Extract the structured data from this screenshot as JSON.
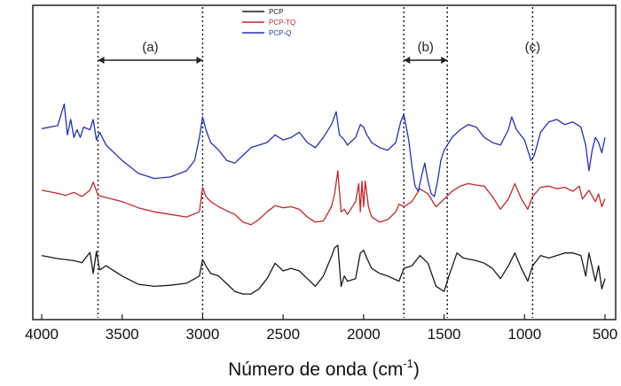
{
  "chart_data": {
    "type": "line",
    "title": "",
    "xlabel": "Número de onda (cm",
    "xlabel_sup": "-1",
    "xlabel_close": ")",
    "ylabel": "",
    "xlim": [
      4000,
      500
    ],
    "x_inverted": true,
    "x_ticks": [
      "4000",
      "3500",
      "3000",
      "2500",
      "2000",
      "1500",
      "1000",
      "500"
    ],
    "y_ticks": [],
    "grid": false,
    "legend_position": "top-center",
    "series": [
      {
        "name": "PCP",
        "color": "#1a1a1a",
        "offset": 0,
        "points": [
          [
            4000,
            0.8
          ],
          [
            3900,
            0.74
          ],
          [
            3800,
            0.7
          ],
          [
            3750,
            0.66
          ],
          [
            3700,
            0.86
          ],
          [
            3680,
            0.45
          ],
          [
            3660,
            0.88
          ],
          [
            3640,
            0.52
          ],
          [
            3600,
            0.6
          ],
          [
            3500,
            0.4
          ],
          [
            3400,
            0.24
          ],
          [
            3300,
            0.2
          ],
          [
            3200,
            0.22
          ],
          [
            3100,
            0.26
          ],
          [
            3020,
            0.4
          ],
          [
            3000,
            0.72
          ],
          [
            2980,
            0.6
          ],
          [
            2950,
            0.45
          ],
          [
            2900,
            0.4
          ],
          [
            2850,
            0.25
          ],
          [
            2800,
            0.1
          ],
          [
            2750,
            0.05
          ],
          [
            2700,
            0.05
          ],
          [
            2650,
            0.15
          ],
          [
            2600,
            0.35
          ],
          [
            2550,
            0.65
          ],
          [
            2500,
            0.5
          ],
          [
            2450,
            0.55
          ],
          [
            2400,
            0.5
          ],
          [
            2350,
            0.35
          ],
          [
            2300,
            0.2
          ],
          [
            2250,
            0.4
          ],
          [
            2200,
            0.78
          ],
          [
            2180,
            0.95
          ],
          [
            2160,
            1.0
          ],
          [
            2140,
            0.2
          ],
          [
            2120,
            0.4
          ],
          [
            2100,
            0.3
          ],
          [
            2050,
            0.35
          ],
          [
            2020,
            0.85
          ],
          [
            2000,
            0.9
          ],
          [
            1980,
            0.75
          ],
          [
            1950,
            0.55
          ],
          [
            1900,
            0.45
          ],
          [
            1850,
            0.4
          ],
          [
            1780,
            0.3
          ],
          [
            1750,
            0.55
          ],
          [
            1700,
            0.6
          ],
          [
            1650,
            0.8
          ],
          [
            1600,
            0.65
          ],
          [
            1550,
            0.2
          ],
          [
            1500,
            0.1
          ],
          [
            1470,
            0.4
          ],
          [
            1420,
            0.85
          ],
          [
            1380,
            0.75
          ],
          [
            1300,
            0.7
          ],
          [
            1250,
            0.65
          ],
          [
            1200,
            0.55
          ],
          [
            1150,
            0.35
          ],
          [
            1100,
            0.6
          ],
          [
            1060,
            0.85
          ],
          [
            1020,
            0.55
          ],
          [
            980,
            0.3
          ],
          [
            950,
            0.6
          ],
          [
            900,
            0.8
          ],
          [
            850,
            0.75
          ],
          [
            800,
            0.8
          ],
          [
            750,
            0.85
          ],
          [
            700,
            0.85
          ],
          [
            650,
            0.8
          ],
          [
            620,
            0.4
          ],
          [
            600,
            0.85
          ],
          [
            560,
            0.3
          ],
          [
            540,
            0.6
          ],
          [
            520,
            0.15
          ],
          [
            500,
            0.35
          ]
        ]
      },
      {
        "name": "PCP-TQ",
        "color": "#c0282d",
        "offset": 1.35,
        "points": [
          [
            4000,
            0.72
          ],
          [
            3900,
            0.66
          ],
          [
            3850,
            0.62
          ],
          [
            3800,
            0.68
          ],
          [
            3750,
            0.6
          ],
          [
            3700,
            0.72
          ],
          [
            3680,
            0.88
          ],
          [
            3650,
            0.62
          ],
          [
            3600,
            0.58
          ],
          [
            3500,
            0.5
          ],
          [
            3400,
            0.38
          ],
          [
            3300,
            0.3
          ],
          [
            3200,
            0.25
          ],
          [
            3100,
            0.2
          ],
          [
            3020,
            0.3
          ],
          [
            3000,
            0.78
          ],
          [
            2980,
            0.6
          ],
          [
            2950,
            0.5
          ],
          [
            2900,
            0.4
          ],
          [
            2850,
            0.32
          ],
          [
            2800,
            0.25
          ],
          [
            2750,
            0.1
          ],
          [
            2700,
            0.05
          ],
          [
            2650,
            0.15
          ],
          [
            2600,
            0.3
          ],
          [
            2550,
            0.42
          ],
          [
            2500,
            0.38
          ],
          [
            2450,
            0.4
          ],
          [
            2400,
            0.35
          ],
          [
            2350,
            0.2
          ],
          [
            2300,
            0.1
          ],
          [
            2250,
            0.12
          ],
          [
            2200,
            0.4
          ],
          [
            2180,
            0.65
          ],
          [
            2160,
            1.1
          ],
          [
            2140,
            0.3
          ],
          [
            2120,
            0.35
          ],
          [
            2100,
            0.25
          ],
          [
            2050,
            0.5
          ],
          [
            2030,
            0.85
          ],
          [
            2020,
            0.3
          ],
          [
            2010,
            0.9
          ],
          [
            2000,
            0.4
          ],
          [
            1990,
            0.9
          ],
          [
            1970,
            0.4
          ],
          [
            1950,
            0.2
          ],
          [
            1900,
            0.1
          ],
          [
            1850,
            0.15
          ],
          [
            1800,
            0.3
          ],
          [
            1780,
            0.45
          ],
          [
            1750,
            0.4
          ],
          [
            1700,
            0.5
          ],
          [
            1650,
            0.75
          ],
          [
            1600,
            0.65
          ],
          [
            1550,
            0.4
          ],
          [
            1500,
            0.55
          ],
          [
            1450,
            0.7
          ],
          [
            1400,
            0.8
          ],
          [
            1350,
            0.85
          ],
          [
            1300,
            0.82
          ],
          [
            1250,
            0.8
          ],
          [
            1200,
            0.6
          ],
          [
            1150,
            0.35
          ],
          [
            1100,
            0.55
          ],
          [
            1060,
            0.85
          ],
          [
            1020,
            0.55
          ],
          [
            980,
            0.35
          ],
          [
            950,
            0.6
          ],
          [
            900,
            0.78
          ],
          [
            850,
            0.8
          ],
          [
            800,
            0.75
          ],
          [
            750,
            0.78
          ],
          [
            700,
            0.7
          ],
          [
            660,
            0.8
          ],
          [
            640,
            0.55
          ],
          [
            600,
            0.72
          ],
          [
            560,
            0.5
          ],
          [
            540,
            0.65
          ],
          [
            520,
            0.4
          ],
          [
            500,
            0.55
          ]
        ]
      },
      {
        "name": "PCP-Q",
        "color": "#2431b4",
        "offset": 2.55,
        "points": [
          [
            4000,
            0.72
          ],
          [
            3900,
            0.78
          ],
          [
            3860,
            1.2
          ],
          [
            3840,
            0.6
          ],
          [
            3820,
            0.9
          ],
          [
            3800,
            0.55
          ],
          [
            3780,
            0.7
          ],
          [
            3760,
            0.55
          ],
          [
            3740,
            0.75
          ],
          [
            3700,
            0.7
          ],
          [
            3680,
            0.9
          ],
          [
            3660,
            0.5
          ],
          [
            3640,
            0.65
          ],
          [
            3600,
            0.4
          ],
          [
            3500,
            0.1
          ],
          [
            3400,
            -0.15
          ],
          [
            3300,
            -0.25
          ],
          [
            3200,
            -0.22
          ],
          [
            3100,
            -0.1
          ],
          [
            3050,
            0.1
          ],
          [
            3020,
            0.55
          ],
          [
            3000,
            0.95
          ],
          [
            2980,
            0.7
          ],
          [
            2950,
            0.45
          ],
          [
            2900,
            0.3
          ],
          [
            2850,
            0.1
          ],
          [
            2800,
            0.05
          ],
          [
            2750,
            0.2
          ],
          [
            2700,
            0.35
          ],
          [
            2650,
            0.4
          ],
          [
            2600,
            0.45
          ],
          [
            2550,
            0.6
          ],
          [
            2500,
            0.5
          ],
          [
            2450,
            0.55
          ],
          [
            2400,
            0.65
          ],
          [
            2350,
            0.45
          ],
          [
            2300,
            0.35
          ],
          [
            2250,
            0.55
          ],
          [
            2200,
            0.8
          ],
          [
            2170,
            1.05
          ],
          [
            2150,
            0.6
          ],
          [
            2120,
            0.5
          ],
          [
            2100,
            0.4
          ],
          [
            2050,
            0.55
          ],
          [
            2020,
            0.8
          ],
          [
            2000,
            0.75
          ],
          [
            1980,
            0.6
          ],
          [
            1950,
            0.45
          ],
          [
            1900,
            0.35
          ],
          [
            1850,
            0.3
          ],
          [
            1800,
            0.45
          ],
          [
            1770,
            0.85
          ],
          [
            1750,
            1.0
          ],
          [
            1720,
            0.5
          ],
          [
            1700,
            0.0
          ],
          [
            1680,
            -0.4
          ],
          [
            1660,
            -0.5
          ],
          [
            1640,
            -0.2
          ],
          [
            1620,
            0.05
          ],
          [
            1600,
            -0.3
          ],
          [
            1580,
            -0.55
          ],
          [
            1560,
            -0.6
          ],
          [
            1540,
            -0.3
          ],
          [
            1520,
            0.1
          ],
          [
            1500,
            0.3
          ],
          [
            1450,
            0.55
          ],
          [
            1400,
            0.7
          ],
          [
            1350,
            0.8
          ],
          [
            1300,
            0.75
          ],
          [
            1250,
            0.55
          ],
          [
            1200,
            0.45
          ],
          [
            1150,
            0.4
          ],
          [
            1100,
            0.7
          ],
          [
            1080,
            0.95
          ],
          [
            1050,
            0.7
          ],
          [
            1000,
            0.5
          ],
          [
            960,
            0.1
          ],
          [
            940,
            0.2
          ],
          [
            900,
            0.65
          ],
          [
            850,
            0.85
          ],
          [
            800,
            0.9
          ],
          [
            750,
            0.8
          ],
          [
            700,
            0.85
          ],
          [
            650,
            0.75
          ],
          [
            620,
            0.4
          ],
          [
            600,
            -0.1
          ],
          [
            580,
            0.3
          ],
          [
            560,
            0.55
          ],
          [
            540,
            0.45
          ],
          [
            520,
            0.25
          ],
          [
            500,
            0.55
          ]
        ]
      }
    ],
    "reference_lines_x": [
      3650,
      3000,
      1750,
      1480,
      950
    ],
    "annotations": [
      {
        "label": "(a)",
        "from": 3650,
        "to": 3000
      },
      {
        "label": "(b)",
        "from": 1750,
        "to": 1480
      },
      {
        "label": "(c)",
        "at": 950
      }
    ]
  }
}
